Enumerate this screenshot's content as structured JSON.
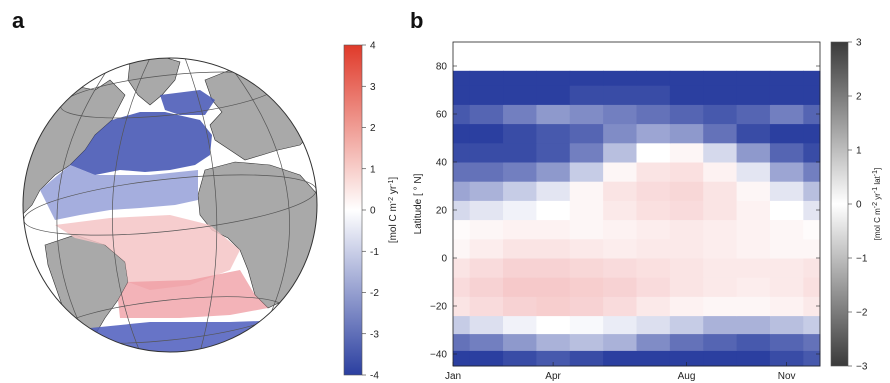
{
  "panels": {
    "a": {
      "letter": "a"
    },
    "b": {
      "letter": "b"
    }
  },
  "chart_data": [
    {
      "type": "heatmap",
      "panel": "a",
      "description_type": "orthographic globe map of the Atlantic basin",
      "colorbar": {
        "label_parts": [
          "[mol C m",
          "-2",
          " yr",
          "-1",
          "]"
        ],
        "ticks": [
          4,
          3,
          2,
          1,
          0,
          -1,
          -2,
          -3,
          -4
        ],
        "range": [
          -4,
          4
        ],
        "colormap": "blue-white-red",
        "colors": {
          "low": "#2b3fa0",
          "mid": "#ffffff",
          "high": "#e03a2a"
        }
      },
      "land_color": "#a9a9a9"
    },
    {
      "type": "heatmap",
      "panel": "b",
      "xlabel": "",
      "ylabel": "Latitude [ ° N]",
      "x_ticks": [
        "Jan",
        "Apr",
        "Aug",
        "Nov"
      ],
      "x_range_months": [
        1,
        12
      ],
      "y_ticks": [
        80,
        60,
        40,
        20,
        0,
        -20,
        -40
      ],
      "ylim": [
        -45,
        90
      ],
      "data_top_latitude": 78,
      "colorbar": {
        "label_parts": [
          "[mol C m",
          "-2",
          " yr",
          "-1",
          " lat",
          "-1",
          "]"
        ],
        "ticks": [
          3,
          2,
          1,
          0,
          -1,
          -2,
          -3
        ],
        "range": [
          -3,
          3
        ],
        "colormap": "grayscale"
      },
      "colors": {
        "low": "#2b3fa0",
        "mid": "#ffffff",
        "high": "#e8787a"
      },
      "months": [
        1,
        2,
        3,
        4,
        5,
        6,
        7,
        8,
        9,
        10,
        11,
        12
      ],
      "latitudes": [
        -42,
        -35,
        -28,
        -20,
        -12,
        -4,
        4,
        12,
        20,
        28,
        36,
        44,
        52,
        60,
        68,
        76
      ],
      "values": [
        [
          -3.0,
          -3.0,
          -2.8,
          -2.6,
          -2.8,
          -3.0,
          -3.0,
          -3.0,
          -3.0,
          -3.0,
          -2.8,
          -2.6
        ],
        [
          -2.2,
          -2.0,
          -1.6,
          -1.2,
          -1.0,
          -1.2,
          -1.8,
          -2.2,
          -2.4,
          -2.6,
          -2.4,
          -2.2
        ],
        [
          -0.8,
          -0.5,
          -0.2,
          0.0,
          -0.1,
          -0.3,
          -0.5,
          -0.8,
          -1.2,
          -1.2,
          -1.0,
          -0.8
        ],
        [
          0.6,
          0.8,
          1.0,
          1.1,
          1.0,
          0.8,
          0.5,
          0.3,
          0.2,
          0.2,
          0.3,
          0.5
        ],
        [
          0.8,
          1.0,
          1.2,
          1.2,
          1.1,
          1.0,
          0.8,
          0.6,
          0.5,
          0.4,
          0.5,
          0.7
        ],
        [
          0.6,
          0.8,
          1.0,
          1.0,
          0.9,
          0.8,
          0.7,
          0.6,
          0.5,
          0.5,
          0.5,
          0.6
        ],
        [
          0.2,
          0.4,
          0.6,
          0.6,
          0.5,
          0.4,
          0.5,
          0.5,
          0.4,
          0.3,
          0.2,
          0.2
        ],
        [
          0.1,
          0.2,
          0.3,
          0.3,
          0.2,
          0.3,
          0.4,
          0.5,
          0.4,
          0.3,
          0.2,
          0.1
        ],
        [
          -0.6,
          -0.4,
          -0.2,
          0.0,
          0.2,
          0.5,
          0.7,
          0.8,
          0.6,
          0.3,
          0.0,
          -0.4
        ],
        [
          -1.4,
          -1.2,
          -0.8,
          -0.4,
          0.2,
          0.6,
          0.8,
          0.9,
          0.6,
          0.2,
          -0.4,
          -1.0
        ],
        [
          -2.2,
          -2.2,
          -2.0,
          -1.6,
          -0.8,
          0.2,
          0.6,
          0.7,
          0.3,
          -0.4,
          -1.4,
          -2.0
        ],
        [
          -2.8,
          -2.8,
          -2.8,
          -2.6,
          -2.0,
          -1.0,
          0.0,
          0.2,
          -0.6,
          -1.6,
          -2.4,
          -2.8
        ],
        [
          -3.0,
          -3.0,
          -2.8,
          -2.6,
          -2.4,
          -1.8,
          -1.4,
          -1.6,
          -2.2,
          -2.8,
          -3.0,
          -3.0
        ],
        [
          -2.6,
          -2.4,
          -2.0,
          -1.6,
          -1.8,
          -2.0,
          -2.2,
          -2.4,
          -2.6,
          -2.4,
          -2.0,
          -2.4
        ],
        [
          -3.0,
          -3.0,
          -3.0,
          -3.0,
          -2.8,
          -2.8,
          -2.8,
          -3.0,
          -3.0,
          -3.0,
          -3.0,
          -3.0
        ],
        [
          -3.0,
          -3.0,
          -3.0,
          -3.0,
          -3.0,
          -3.0,
          -3.0,
          -3.0,
          -3.0,
          -3.0,
          -3.0,
          -3.0
        ]
      ]
    }
  ]
}
